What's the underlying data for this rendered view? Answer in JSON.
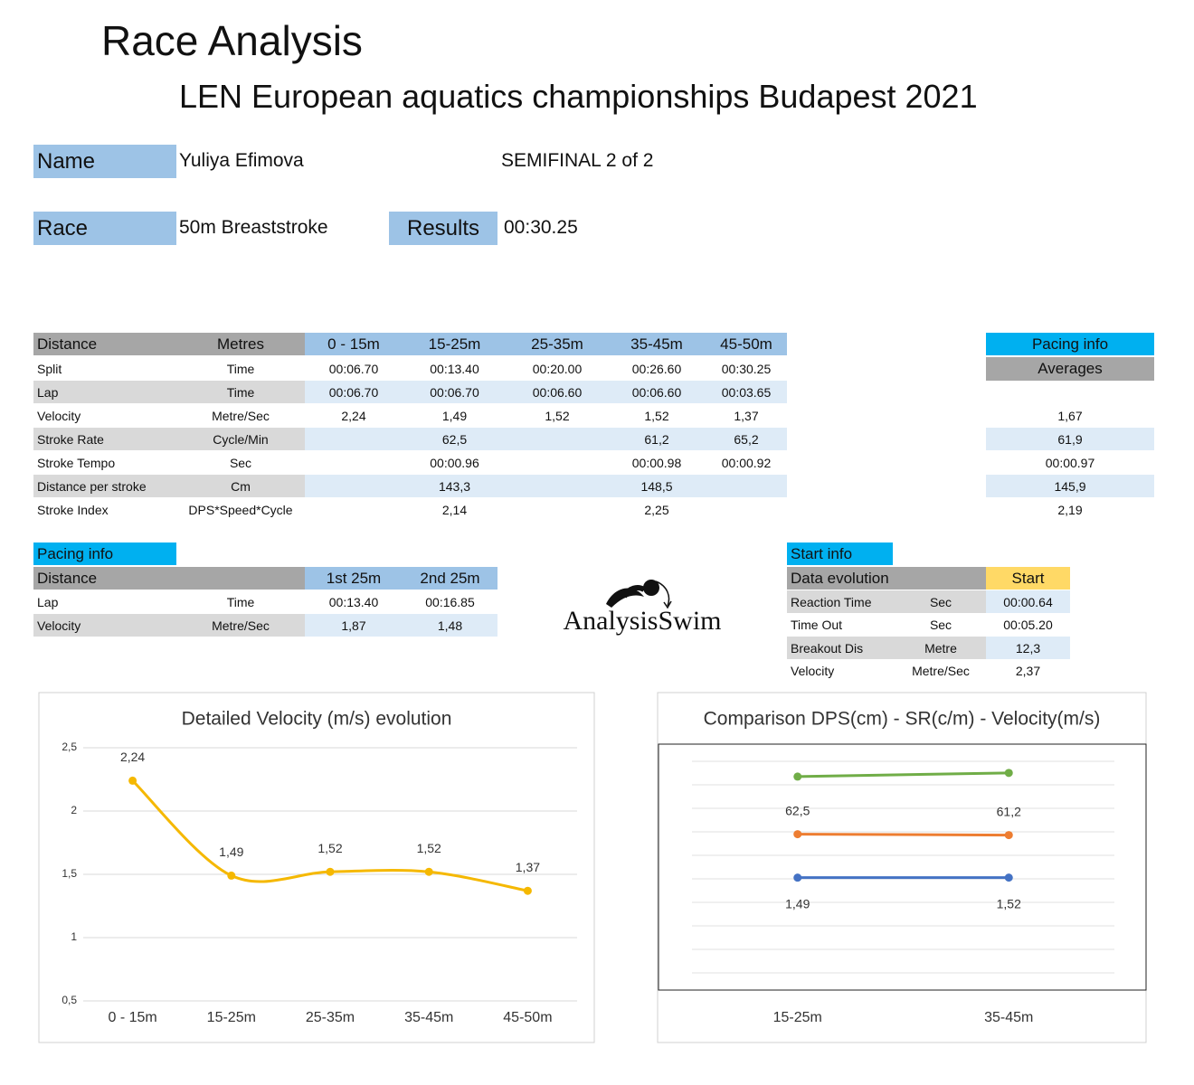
{
  "header": {
    "title": "Race Analysis",
    "subtitle": "LEN European aquatics championships Budapest 2021"
  },
  "info": {
    "name_label": "Name",
    "name": "Yuliya Efimova",
    "round": "SEMIFINAL 2 of 2",
    "race_label": "Race",
    "race": "50m Breaststroke",
    "results_label": "Results",
    "results": "00:30.25"
  },
  "main_table": {
    "header": [
      "Distance",
      "Metres",
      "0 - 15m",
      "15-25m",
      "25-35m",
      "35-45m",
      "45-50m"
    ],
    "rows": [
      [
        "Split",
        "Time",
        "00:06.70",
        "00:13.40",
        "00:20.00",
        "00:26.60",
        "00:30.25"
      ],
      [
        "Lap",
        "Time",
        "00:06.70",
        "00:06.70",
        "00:06.60",
        "00:06.60",
        "00:03.65"
      ],
      [
        "Velocity",
        "Metre/Sec",
        "2,24",
        "1,49",
        "1,52",
        "1,52",
        "1,37"
      ],
      [
        "Stroke Rate",
        "Cycle/Min",
        null,
        "62,5",
        null,
        "61,2",
        "65,2"
      ],
      [
        "Stroke Tempo",
        "Sec",
        null,
        "00:00.96",
        null,
        "00:00.98",
        "00:00.92"
      ],
      [
        "Distance per stroke",
        "Cm",
        null,
        "143,3",
        null,
        "148,5",
        null
      ],
      [
        "Stroke Index",
        "DPS*Speed*Cycle",
        null,
        "2,14",
        null,
        "2,25",
        null
      ]
    ]
  },
  "averages": {
    "title": "Pacing info",
    "header": "Averages",
    "rows": [
      null,
      "1,67",
      "61,9",
      "00:00.97",
      "145,9",
      "2,19"
    ]
  },
  "pacing_table": {
    "title": "Pacing info",
    "header": [
      "Distance",
      "1st 25m",
      "2nd 25m"
    ],
    "rows": [
      [
        "Lap",
        "Time",
        "00:13.40",
        "00:16.85"
      ],
      [
        "Velocity",
        "Metre/Sec",
        "1,87",
        "1,48"
      ]
    ]
  },
  "start_table": {
    "title": "Start info",
    "header": [
      "Data evolution",
      "Start"
    ],
    "rows": [
      [
        "Reaction Time",
        "Sec",
        "00:00.64"
      ],
      [
        "Time Out",
        "Sec",
        "00:05.20"
      ],
      [
        "Breakout Dis",
        "Metre",
        "12,3"
      ],
      [
        "Velocity",
        "Metre/Sec",
        "2,37"
      ]
    ]
  },
  "logo": "AnalysisSwim",
  "chart_data": [
    {
      "type": "line",
      "title": "Detailed Velocity (m/s)  evolution",
      "smooth": true,
      "categories": [
        "0 - 15m",
        "15-25m",
        "25-35m",
        "35-45m",
        "45-50m"
      ],
      "values": [
        2.24,
        1.49,
        1.52,
        1.52,
        1.37
      ],
      "value_labels": [
        "2,24",
        "1,49",
        "1,52",
        "1,52",
        "1,37"
      ],
      "color": "#f5b800",
      "ylim": [
        0.5,
        2.5
      ],
      "yticks": [
        {
          "value": 0.5,
          "label": "0,5"
        },
        1,
        {
          "value": 1.5,
          "label": "1,5"
        },
        2,
        {
          "value": 2.5,
          "label": "2,5"
        }
      ],
      "grid": true
    },
    {
      "type": "line",
      "title": "Comparison DPS(cm) - SR(c/m) - Velocity(m/s)",
      "categories": [
        "15-25m",
        "35-45m"
      ],
      "ylim": [
        -150,
        180
      ],
      "grid": true,
      "series": [
        {
          "color": "#70ad47",
          "values": [
            143.3,
            148.5
          ]
        },
        {
          "color": "#ed7d31",
          "values": [
            62.5,
            61.2
          ],
          "value_labels": [
            "62,5",
            "61,2"
          ]
        },
        {
          "color": "#4472c4",
          "values": [
            1.49,
            1.52
          ],
          "value_labels": [
            "1,49",
            "1,52"
          ],
          "label_position": "below"
        }
      ]
    }
  ]
}
